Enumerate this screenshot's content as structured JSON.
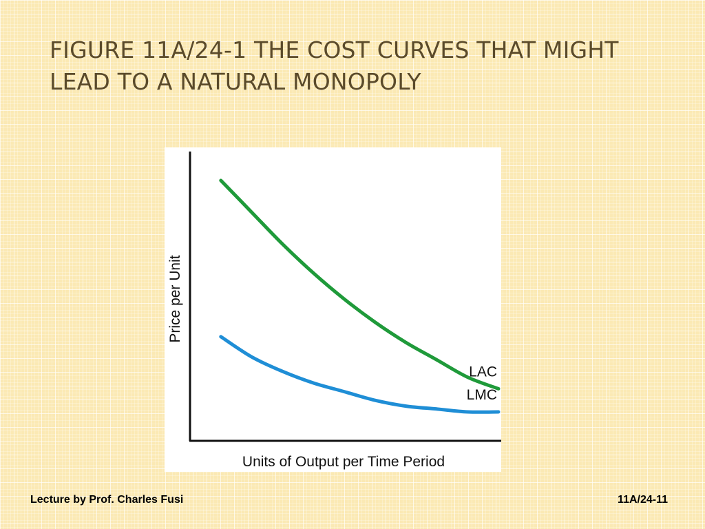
{
  "slide": {
    "title_line1": "FIGURE 11A/24-1  THE COST CURVES THAT MIGHT",
    "title_line2": "LEAD TO A NATURAL MONOPOLY",
    "footer_left": "Lecture by Prof. Charles Fusi",
    "footer_right": "11A/24-11"
  },
  "chart_data": {
    "type": "line",
    "title": "",
    "xlabel": "Units of Output per Time Period",
    "ylabel": "Price per Unit",
    "xlim": [
      0,
      100
    ],
    "ylim": [
      0,
      100
    ],
    "grid": false,
    "x": [
      10,
      20,
      30,
      40,
      50,
      60,
      70,
      80,
      90,
      100
    ],
    "series": [
      {
        "name": "LAC",
        "color": "#1f9a3a",
        "values": [
          90,
          79,
          68,
          58,
          49,
          41,
          34,
          28,
          22,
          18
        ]
      },
      {
        "name": "LMC",
        "color": "#1f8ed6",
        "values": [
          36,
          29,
          24,
          20,
          17,
          14,
          12,
          11,
          10,
          10
        ]
      }
    ]
  }
}
